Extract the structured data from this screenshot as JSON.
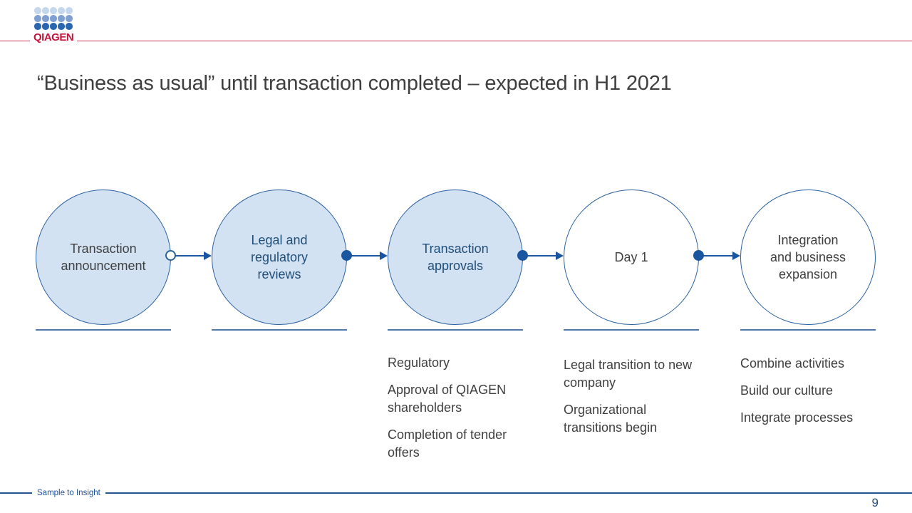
{
  "slide": {
    "logo_text": "QIAGEN",
    "title": "“Business as usual” until transaction completed – expected in H1 2021",
    "tagline": "Sample to Insight",
    "page_number": "9"
  },
  "timeline": {
    "stages": [
      {
        "label": "Transaction announcement",
        "filled": true,
        "marker": "open-dot",
        "bullets": []
      },
      {
        "label": "Legal and regulatory reviews",
        "filled": true,
        "marker": "filled-dot",
        "bullets": []
      },
      {
        "label": "Transaction approvals",
        "filled": true,
        "marker": "filled-dot",
        "bullets": [
          "Regulatory",
          "Approval of QIAGEN shareholders",
          "Completion of tender offers"
        ]
      },
      {
        "label": "Day 1",
        "filled": false,
        "marker": "filled-dot",
        "bullets": [
          "Legal transition to new company",
          "Organizational transitions begin"
        ]
      },
      {
        "label": "Integration and business expansion",
        "filled": false,
        "marker": "none",
        "bullets": [
          "Combine activities",
          "Build our culture",
          "Integrate processes"
        ]
      }
    ]
  },
  "colors": {
    "circle_fill": "#d3e2f2",
    "circle_border": "#2a619f",
    "label_blue": "#1f4e79",
    "label_gray": "#3f3f3f",
    "connector_blue": "#1a55a0",
    "baseline_blue": "#4f7aa9",
    "brand_red": "#c41439",
    "header_rule_red": "#d23b55",
    "footer_blue": "#24558e",
    "logo_dot_light": "#c5d7ec",
    "logo_dot_medium": "#7f9fd1",
    "logo_dot_dark": "#2a65b0"
  }
}
